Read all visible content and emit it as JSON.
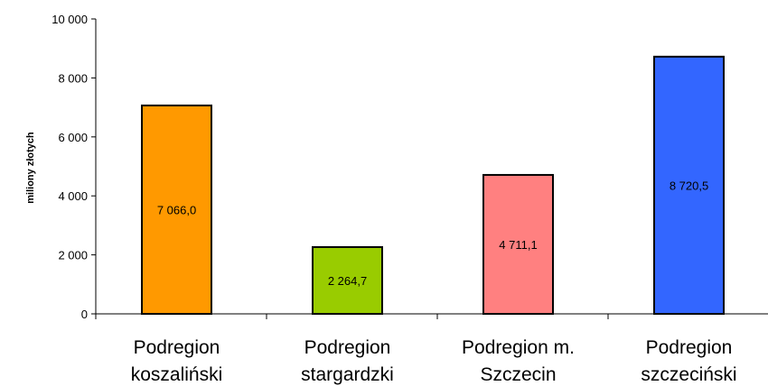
{
  "chart_data": {
    "type": "bar",
    "title": "",
    "xlabel": "",
    "ylabel": "miliony złotych",
    "ylim": [
      0,
      10000
    ],
    "yticks": [
      0,
      2000,
      4000,
      6000,
      8000,
      10000
    ],
    "ytick_labels": [
      "0",
      "2 000",
      "4 000",
      "6 000",
      "8 000",
      "10 000"
    ],
    "grid": false,
    "legend": "none",
    "categories": [
      [
        "Podregion",
        "koszaliński"
      ],
      [
        "Podregion",
        "stargardzki"
      ],
      [
        "Podregion m.",
        "Szczecin"
      ],
      [
        "Podregion",
        "szczeciński"
      ]
    ],
    "values": [
      7066.0,
      2264.7,
      4711.1,
      8720.5
    ],
    "data_labels": [
      "7 066,0",
      "2 264,7",
      "4 711,1",
      "8 720,5"
    ],
    "colors": [
      "#ff9900",
      "#99cc00",
      "#ff8080",
      "#3366ff"
    ]
  }
}
